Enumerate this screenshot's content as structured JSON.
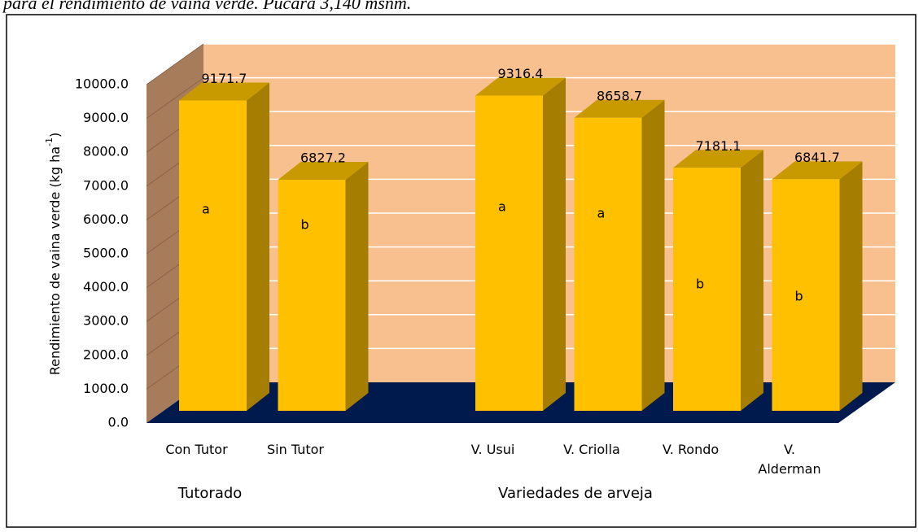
{
  "caption": "para el rendimiento de vaina verde. Pucará 3,140 msnm.",
  "chart_data": {
    "type": "bar3d",
    "y_label": {
      "text": "Rendimiento de vaina verde (kg ha",
      "superscript": "-1",
      "suffix": ")"
    },
    "groups": [
      {
        "label": "Tutorado",
        "categories": [
          "Con Tutor",
          "Sin Tutor"
        ],
        "values": [
          9171.7,
          6827.2
        ],
        "annotations": [
          "a",
          "b"
        ]
      },
      {
        "label": "Variedades de arveja",
        "categories": [
          "V. Usui",
          "V. Criolla",
          "V. Rondo",
          "V. Alderman"
        ],
        "values": [
          9316.4,
          8658.7,
          7181.1,
          6841.7
        ],
        "annotations": [
          "a",
          "a",
          "b",
          "b"
        ]
      }
    ],
    "color": "#ffc000",
    "ylim": [
      0,
      10000
    ],
    "yticks": [
      {
        "value": 0,
        "label": "0.0"
      },
      {
        "value": 1000,
        "label": "1000.0"
      },
      {
        "value": 2000,
        "label": "2000.0"
      },
      {
        "value": 3000,
        "label": "3000.0"
      },
      {
        "value": 4000,
        "label": "4000.0"
      },
      {
        "value": 5000,
        "label": "5000.0"
      },
      {
        "value": 6000,
        "label": "6000.0"
      },
      {
        "value": 7000,
        "label": "7000.0"
      },
      {
        "value": 8000,
        "label": "8000.0"
      },
      {
        "value": 9000,
        "label": "9000.0"
      },
      {
        "value": 10000,
        "label": "10000.0"
      }
    ],
    "grid": true
  }
}
